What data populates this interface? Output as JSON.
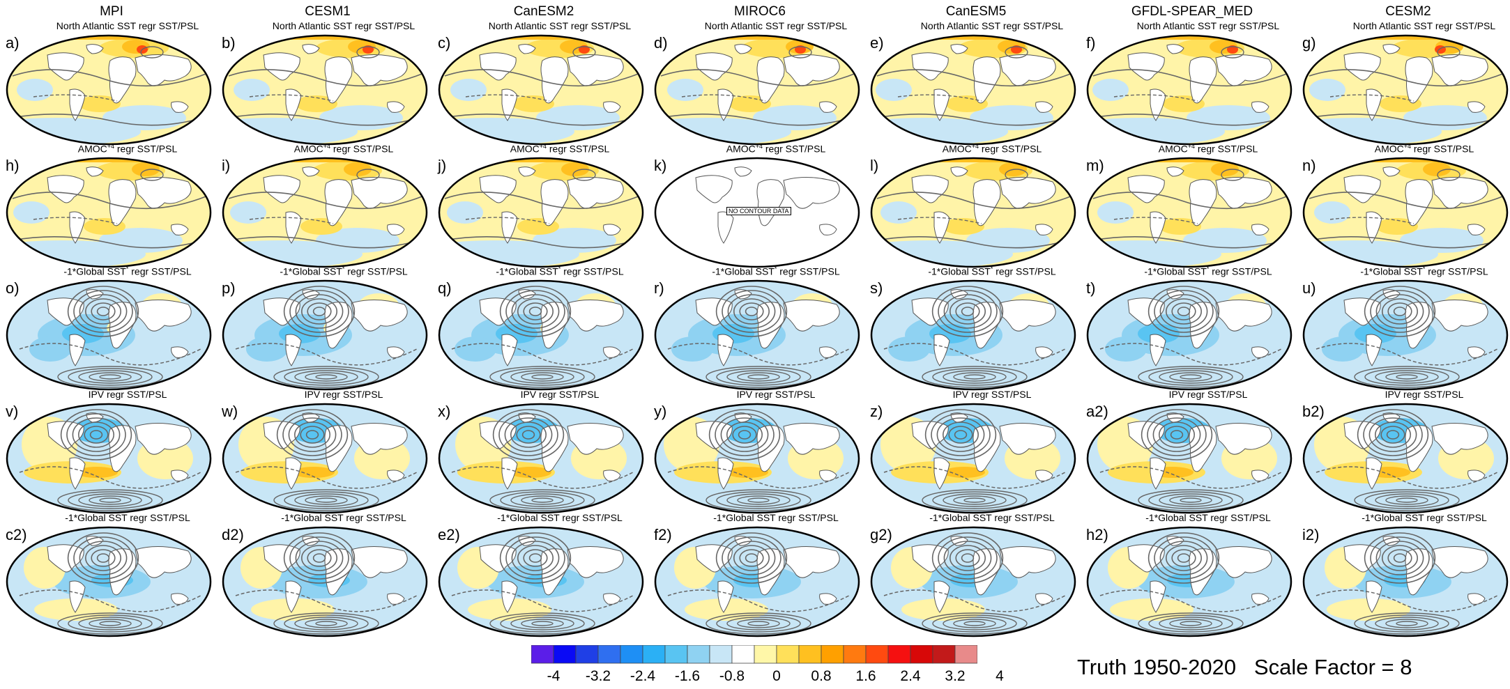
{
  "columns": [
    "MPI",
    "CESM1",
    "CanESM2",
    "MIROC6",
    "CanESM5",
    "GFDL-SPEAR_MED",
    "CESM2"
  ],
  "rows": [
    {
      "title": "North Atlantic SST regr SST/PSL",
      "labels": [
        "a)",
        "b)",
        "c)",
        "d)",
        "e)",
        "f)",
        "g)"
      ],
      "pattern": "na"
    },
    {
      "title": "AMOC+4 regr SST/PSL",
      "title_main": "AMOC",
      "title_sup": "+4",
      "title_rest": " regr SST/PSL",
      "labels": [
        "h)",
        "i)",
        "j)",
        "k)",
        "l)",
        "m)",
        "n)"
      ],
      "pattern": "amoc"
    },
    {
      "title": "-1*Global SST* regr SST/PSL",
      "title_main": "-1*Global SST",
      "title_sup": "*",
      "title_rest": " regr SST/PSL",
      "labels": [
        "o)",
        "p)",
        "q)",
        "r)",
        "s)",
        "t)",
        "u)"
      ],
      "pattern": "gstar"
    },
    {
      "title": "IPV regr SST/PSL",
      "labels": [
        "v)",
        "w)",
        "x)",
        "y)",
        "z)",
        "a2)",
        "b2)"
      ],
      "pattern": "ipv"
    },
    {
      "title": "-1*Global SST regr SST/PSL",
      "labels": [
        "c2)",
        "d2)",
        "e2)",
        "f2)",
        "g2)",
        "h2)",
        "i2)"
      ],
      "pattern": "gsst"
    }
  ],
  "no_data_text": "NO CONTOUR DATA",
  "colorbar": {
    "colors": [
      "#5b1ee8",
      "#0a0af5",
      "#1f3fe6",
      "#2f6ff0",
      "#1e8ff5",
      "#2bb0f5",
      "#59c4f2",
      "#8fd2f2",
      "#c8e6f6",
      "#ffffff",
      "#fff7a8",
      "#ffe05a",
      "#ffc020",
      "#ffa000",
      "#ff7a10",
      "#ff4a10",
      "#f51010",
      "#d80808",
      "#c21a1a",
      "#e88a8a"
    ],
    "tick_labels": [
      "-4",
      "-3.2",
      "-2.4",
      "-1.6",
      "-0.8",
      "0",
      "0.8",
      "1.6",
      "2.4",
      "3.2",
      "4"
    ]
  },
  "footer": {
    "truth": "Truth 1950-2020",
    "scale": "Scale Factor = 8"
  }
}
